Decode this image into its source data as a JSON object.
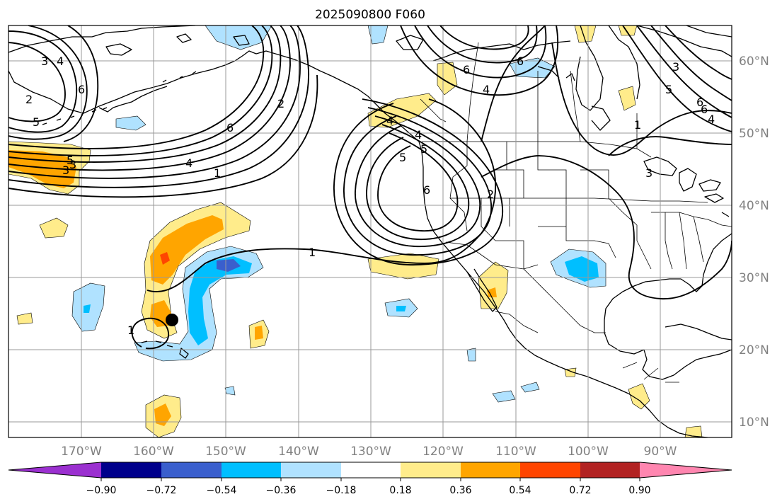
{
  "map": {
    "title": "2025090800 F060",
    "longitude_labels": [
      "170°W",
      "160°W",
      "150°W",
      "140°W",
      "130°W",
      "120°W",
      "110°W",
      "100°W",
      "90°W"
    ],
    "latitude_labels": [
      "60°N",
      "50°N",
      "40°N",
      "30°N",
      "20°N",
      "10°N"
    ]
  },
  "colorbar": {
    "tick_labels": [
      "−0.90",
      "−0.72",
      "−0.54",
      "−0.36",
      "−0.18",
      "0.18",
      "0.36",
      "0.54",
      "0.72",
      "0.90"
    ],
    "colors": [
      "#9b30d0",
      "#00008b",
      "#3a5fcd",
      "#00bfff",
      "#b0e2ff",
      "#ffffff",
      "#ffec8b",
      "#ffa500",
      "#ff4500",
      "#b22222",
      "#ff86b0"
    ]
  },
  "contour_labels": [
    "3",
    "4",
    "6",
    "2",
    "5",
    "3",
    "5",
    "3",
    "6",
    "4",
    "1",
    "2",
    "6",
    "4",
    "6",
    "5",
    "4",
    "5",
    "6",
    "4",
    "2",
    "6",
    "3",
    "5",
    "6",
    "4",
    "1",
    "3",
    "1",
    "1"
  ]
}
